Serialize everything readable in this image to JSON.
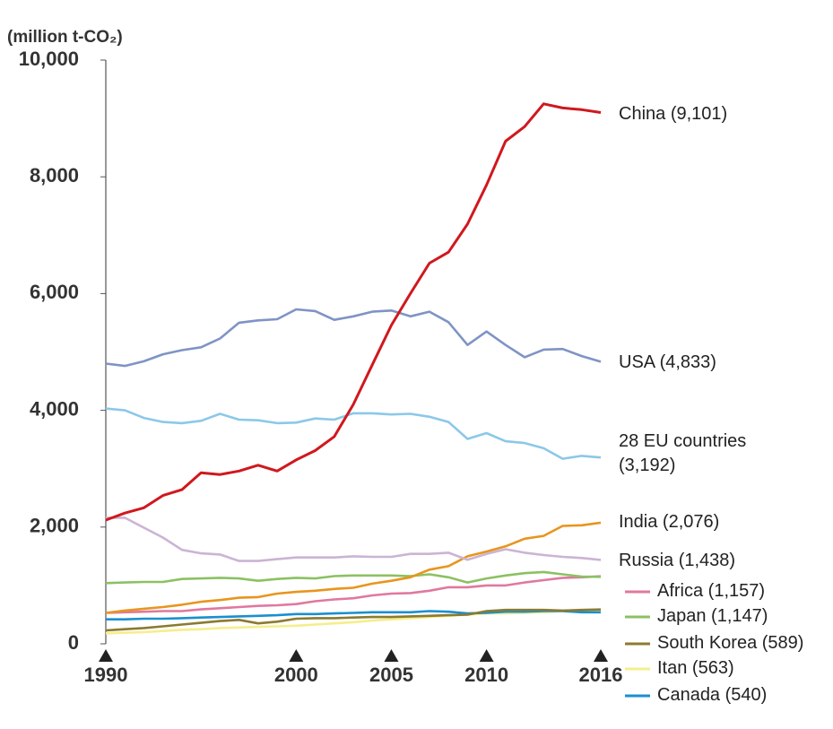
{
  "chart_data": {
    "type": "line",
    "y_label": "(million t-CO₂)",
    "x": [
      1990,
      1991,
      1992,
      1993,
      1994,
      1995,
      1996,
      1997,
      1998,
      1999,
      2000,
      2001,
      2002,
      2003,
      2004,
      2005,
      2006,
      2007,
      2008,
      2009,
      2010,
      2011,
      2012,
      2013,
      2014,
      2015,
      2016
    ],
    "xlim": [
      1990,
      2016
    ],
    "xticks": [
      1990,
      2000,
      2005,
      2010,
      2016
    ],
    "ylim": [
      0,
      10000
    ],
    "yticks": [
      0,
      {
        "value": 2000,
        "label": "2,000"
      },
      {
        "value": 4000,
        "label": "4,000"
      },
      {
        "value": 6000,
        "label": "6,000"
      },
      {
        "value": 8000,
        "label": "8,000"
      },
      {
        "value": 10000,
        "label": "10,000"
      }
    ],
    "grid": false,
    "series": [
      {
        "name": "China (9,101)",
        "color": "#d0181e",
        "values": [
          2120,
          2240,
          2330,
          2540,
          2640,
          2930,
          2900,
          2960,
          3060,
          2960,
          3150,
          3310,
          3550,
          4100,
          4780,
          5460,
          6000,
          6520,
          6710,
          7190,
          7860,
          8610,
          8860,
          9250,
          9180,
          9150,
          9101
        ]
      },
      {
        "name": "USA (4,833)",
        "color": "#7f94c4",
        "values": [
          4800,
          4760,
          4840,
          4960,
          5030,
          5080,
          5230,
          5500,
          5540,
          5560,
          5730,
          5700,
          5550,
          5610,
          5690,
          5710,
          5610,
          5690,
          5510,
          5120,
          5350,
          5120,
          4910,
          5040,
          5050,
          4930,
          4833
        ]
      },
      {
        "name": "28 EU countries (3,192)",
        "color": "#8cc8e8",
        "values": [
          4030,
          4000,
          3870,
          3800,
          3780,
          3820,
          3940,
          3840,
          3830,
          3780,
          3790,
          3860,
          3840,
          3950,
          3950,
          3930,
          3940,
          3890,
          3800,
          3510,
          3610,
          3470,
          3440,
          3350,
          3170,
          3220,
          3192
        ]
      },
      {
        "name": "India (2,076)",
        "color": "#e8951d",
        "values": [
          530,
          570,
          600,
          630,
          670,
          720,
          750,
          790,
          800,
          860,
          890,
          910,
          940,
          960,
          1030,
          1080,
          1140,
          1270,
          1330,
          1500,
          1580,
          1670,
          1800,
          1850,
          2020,
          2030,
          2076
        ]
      },
      {
        "name": "Russia (1,438)",
        "color": "#cbb4d4",
        "values": [
          2160,
          2160,
          1990,
          1820,
          1610,
          1550,
          1530,
          1420,
          1420,
          1450,
          1480,
          1480,
          1480,
          1500,
          1490,
          1490,
          1540,
          1540,
          1560,
          1440,
          1540,
          1620,
          1560,
          1520,
          1490,
          1470,
          1438
        ]
      },
      {
        "name": "Africa (1,157)",
        "color": "#e0789f",
        "values": [
          530,
          540,
          550,
          560,
          560,
          590,
          610,
          630,
          650,
          660,
          680,
          730,
          760,
          780,
          830,
          860,
          870,
          910,
          970,
          970,
          1000,
          1000,
          1050,
          1090,
          1130,
          1140,
          1157
        ]
      },
      {
        "name": "Japan (1,147)",
        "color": "#8cc163",
        "values": [
          1040,
          1050,
          1060,
          1060,
          1110,
          1120,
          1130,
          1120,
          1080,
          1110,
          1130,
          1120,
          1160,
          1170,
          1170,
          1170,
          1160,
          1190,
          1140,
          1050,
          1120,
          1170,
          1210,
          1230,
          1190,
          1150,
          1147
        ]
      },
      {
        "name": "South Korea (589)",
        "color": "#8c7a30",
        "values": [
          230,
          250,
          270,
          300,
          330,
          360,
          390,
          410,
          350,
          380,
          430,
          440,
          440,
          450,
          460,
          460,
          470,
          480,
          490,
          500,
          560,
          580,
          580,
          580,
          570,
          580,
          589
        ]
      },
      {
        "name": "Itan (563)",
        "color": "#f5ee8c",
        "values": [
          180,
          190,
          200,
          220,
          240,
          250,
          270,
          280,
          290,
          300,
          310,
          330,
          350,
          370,
          400,
          420,
          440,
          460,
          480,
          500,
          520,
          520,
          530,
          540,
          560,
          560,
          563
        ]
      },
      {
        "name": "Canada (540)",
        "color": "#1a8fd0",
        "values": [
          420,
          420,
          430,
          430,
          440,
          450,
          460,
          470,
          480,
          490,
          510,
          510,
          520,
          530,
          540,
          540,
          540,
          560,
          550,
          520,
          530,
          550,
          550,
          560,
          560,
          540,
          540
        ]
      }
    ]
  }
}
